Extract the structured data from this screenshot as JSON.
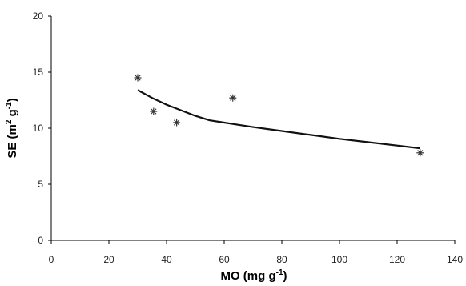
{
  "chart_data": {
    "type": "scatter",
    "title": "",
    "xlabel": {
      "base": "MO (mg g",
      "sup": "-1",
      "tail": ")"
    },
    "ylabel": {
      "base": "SE (m",
      "sup1": "2",
      "mid": " g",
      "sup2": "-1",
      "tail": ")"
    },
    "xlim": [
      0,
      140
    ],
    "ylim": [
      0,
      20
    ],
    "x_ticks": [
      0,
      20,
      40,
      60,
      80,
      100,
      120,
      140
    ],
    "y_ticks": [
      0,
      5,
      10,
      15,
      20
    ],
    "grid": false,
    "legend": "none",
    "series": [
      {
        "kind": "points",
        "marker": "asterisk",
        "x": [
          30,
          35.5,
          43.5,
          63,
          128
        ],
        "y": [
          14.5,
          11.5,
          10.5,
          12.7,
          7.8
        ]
      },
      {
        "kind": "trend-line",
        "x": [
          30,
          35,
          40,
          45,
          50,
          55,
          60,
          65,
          70,
          80,
          90,
          100,
          110,
          120,
          128
        ],
        "y": [
          13.4,
          12.7,
          12.1,
          11.6,
          11.1,
          10.7,
          10.5,
          10.3,
          10.1,
          9.75,
          9.4,
          9.05,
          8.75,
          8.45,
          8.2
        ]
      }
    ],
    "colors": {
      "axis": "#000000",
      "marker": "#333333",
      "line": "#111111"
    }
  }
}
